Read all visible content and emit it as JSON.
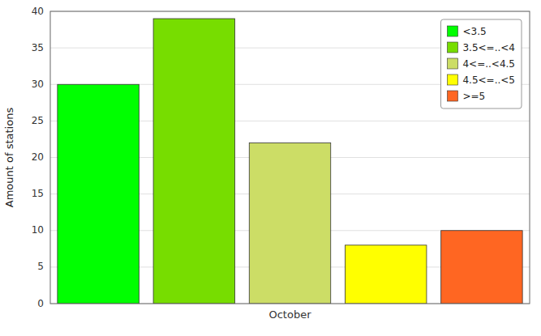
{
  "chart_data": {
    "type": "bar",
    "categories": [
      null,
      null,
      "October",
      null,
      null
    ],
    "series": [
      {
        "name": "<3.5",
        "color": "#00ff00",
        "values": [
          30,
          null,
          null,
          null,
          null
        ]
      },
      {
        "name": "3.5<=..<4",
        "color": "#77dd00",
        "values": [
          null,
          39,
          null,
          null,
          null
        ]
      },
      {
        "name": "4<=..<4.5",
        "color": "#ccdd66",
        "values": [
          null,
          null,
          22,
          null,
          null
        ]
      },
      {
        "name": "4.5<=..<5",
        "color": "#ffff00",
        "values": [
          null,
          null,
          null,
          8,
          null
        ]
      },
      {
        "name": ">=5",
        "color": "#ff6622",
        "values": [
          null,
          null,
          null,
          null,
          10
        ]
      }
    ],
    "stacked": true,
    "ylabel": "Amount of stations",
    "ylim": [
      0,
      40
    ],
    "yticks": [
      0,
      5,
      10,
      15,
      20,
      25,
      30,
      35,
      40
    ],
    "grid": true,
    "legend": "upper right"
  }
}
